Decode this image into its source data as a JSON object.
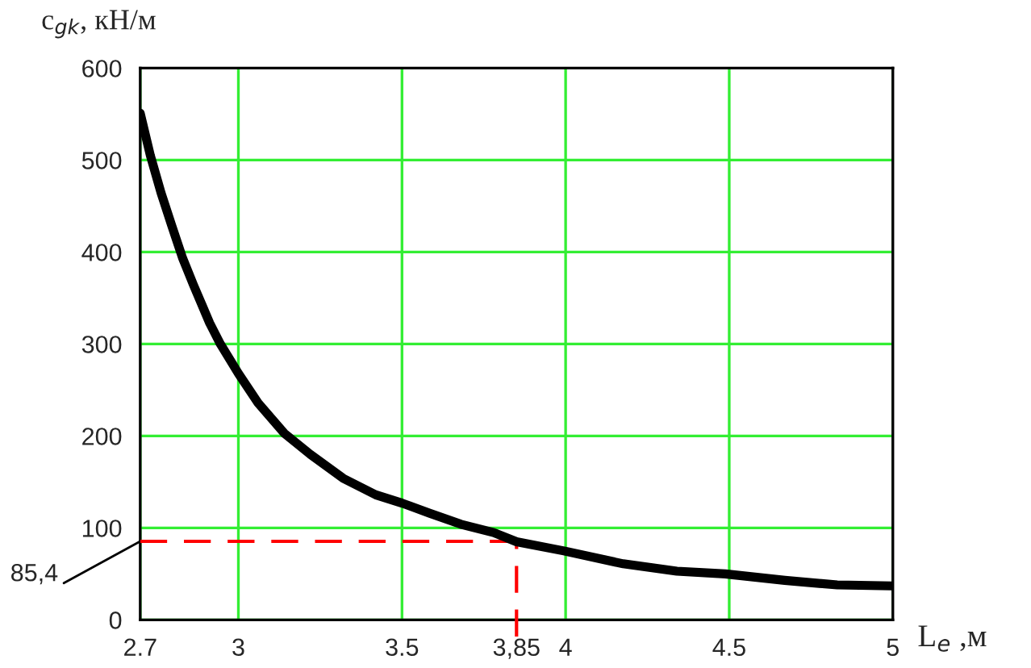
{
  "chart_data": {
    "type": "line",
    "ylabel": "c$_{gk}$, кН/м",
    "xlabel": "L$_{e}$ ,м",
    "x": [
      2.7,
      2.731,
      2.764,
      2.797,
      2.83,
      2.863,
      2.912,
      2.945,
      3.0,
      3.06,
      3.14,
      3.22,
      3.32,
      3.42,
      3.5,
      3.585,
      3.68,
      3.78,
      3.85,
      3.995,
      4.176,
      4.34,
      4.488,
      4.67,
      4.83,
      5.0
    ],
    "series": [
      {
        "color": "#000000",
        "values": [
          551,
          505,
          464,
          428,
          393,
          364,
          323,
          300,
          268,
          236,
          203,
          180,
          154,
          136,
          127,
          116,
          104,
          95,
          85,
          75,
          61,
          53,
          50,
          43,
          38,
          37
        ]
      }
    ],
    "xlim": [
      2.7,
      5
    ],
    "xticks": [
      2.7,
      3,
      3.5,
      4,
      4.5,
      5
    ],
    "ylim": [
      0,
      600
    ],
    "yticks": [
      0,
      100,
      200,
      300,
      400,
      500,
      600
    ],
    "grid": true,
    "ref_lines": [
      {
        "axis": "y",
        "value": 85.4,
        "label": "85,4",
        "color": "#ff0000",
        "line_style": "dashed"
      },
      {
        "axis": "x",
        "value": 3.85,
        "label": "3,85",
        "color": "#ff0000",
        "line_style": "dashed"
      }
    ]
  }
}
